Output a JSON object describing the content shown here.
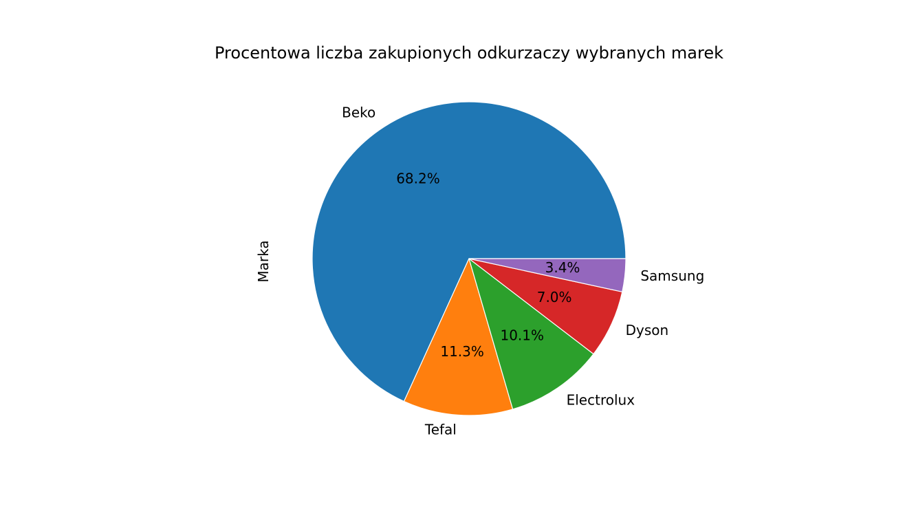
{
  "chart_data": {
    "type": "pie",
    "title": "Procentowa liczba zakupionych odkurzaczy wybranych marek",
    "ylabel": "Marka",
    "categories": [
      "Beko",
      "Tefal",
      "Electrolux",
      "Dyson",
      "Samsung"
    ],
    "values": [
      68.2,
      11.3,
      10.1,
      7.0,
      3.4
    ],
    "pct_labels": [
      "68.2%",
      "11.3%",
      "10.1%",
      "7.0%",
      "3.4%"
    ],
    "colors": [
      "#1f77b4",
      "#ff7f0e",
      "#2ca02c",
      "#d62728",
      "#9467bd"
    ],
    "start_angle_deg": 0,
    "direction": "counterclockwise",
    "legend": "none"
  }
}
